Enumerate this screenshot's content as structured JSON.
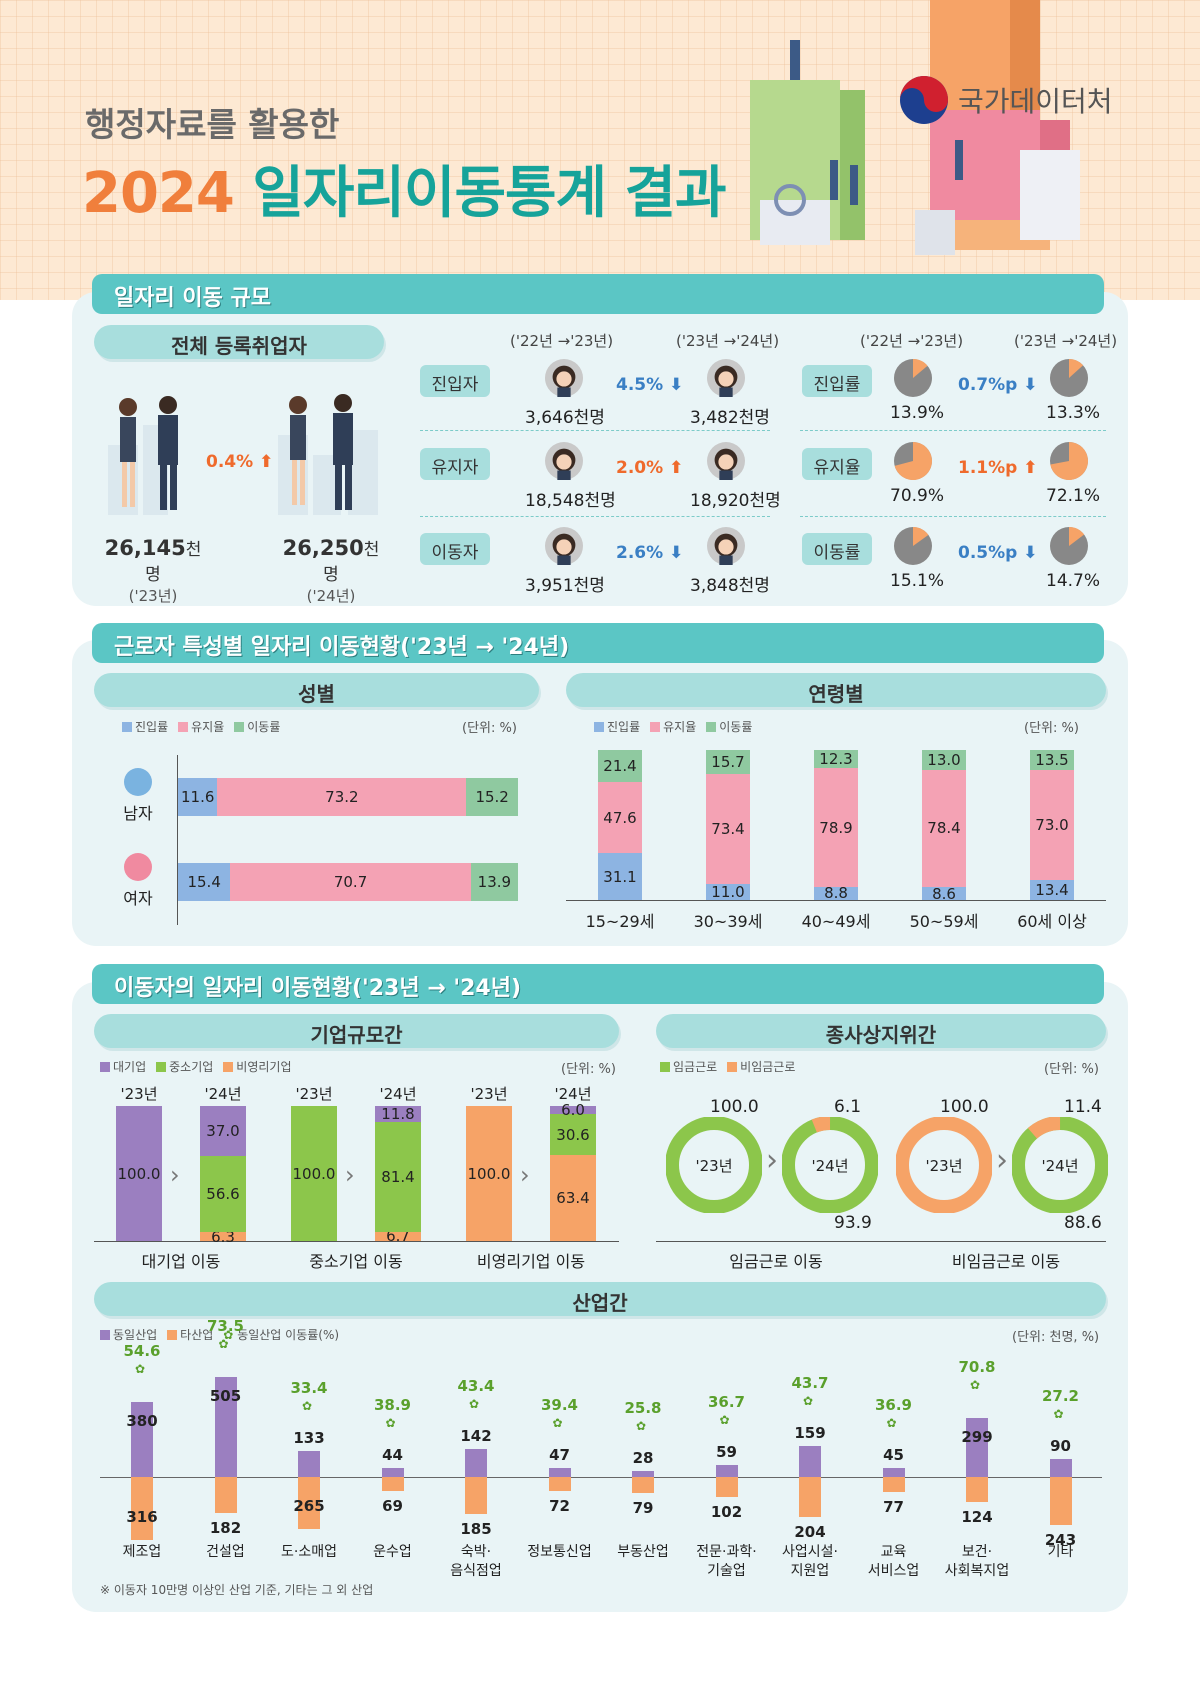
{
  "header": {
    "subtitle": "행정자료를 활용한",
    "title_year": "2024",
    "title_rest": "일자리이동통계 결과",
    "logo_text": "국가데이터처"
  },
  "scale": {
    "title": "일자리 이동 규모",
    "total": {
      "label": "전체 등록취업자",
      "change": "0.4%",
      "v23": "26,145",
      "v24": "26,250",
      "unit": "천명",
      "y23": "('23년)",
      "y24": "('24년)"
    },
    "period_a": "('22년 →'23년)",
    "period_b": "('23년 →'24년)",
    "unit": "천명",
    "counts": [
      {
        "label": "진입자",
        "a": "3,646",
        "b": "3,482",
        "change": "4.5%",
        "dir": "down"
      },
      {
        "label": "유지자",
        "a": "18,548",
        "b": "18,920",
        "change": "2.0%",
        "dir": "up"
      },
      {
        "label": "이동자",
        "a": "3,951",
        "b": "3,848",
        "change": "2.6%",
        "dir": "down"
      }
    ],
    "rates": [
      {
        "label": "진입률",
        "a": "13.9",
        "b": "13.3",
        "change": "0.7%p",
        "dir": "down"
      },
      {
        "label": "유지율",
        "a": "70.9",
        "b": "72.1",
        "change": "1.1%p",
        "dir": "up"
      },
      {
        "label": "이동률",
        "a": "15.1",
        "b": "14.7",
        "change": "0.5%p",
        "dir": "down"
      }
    ],
    "pct_sign": "%"
  },
  "worker": {
    "title": "근로자 특성별 일자리 이동현황('23년 → '24년)",
    "legend": [
      "진입률",
      "유지율",
      "이동률"
    ],
    "unit": "(단위: %)",
    "gender": {
      "title": "성별",
      "rows": [
        {
          "label": "남자",
          "values": [
            "11.6",
            "73.2",
            "15.2"
          ]
        },
        {
          "label": "여자",
          "values": [
            "15.4",
            "70.7",
            "13.9"
          ]
        }
      ]
    },
    "age": {
      "title": "연령별",
      "groups": [
        {
          "label": "15~29세",
          "values": [
            "31.1",
            "47.6",
            "21.4"
          ]
        },
        {
          "label": "30~39세",
          "values": [
            "11.0",
            "73.4",
            "15.7"
          ]
        },
        {
          "label": "40~49세",
          "values": [
            "8.8",
            "78.9",
            "12.3"
          ]
        },
        {
          "label": "50~59세",
          "values": [
            "8.6",
            "78.4",
            "13.0"
          ]
        },
        {
          "label": "60세 이상",
          "values": [
            "13.4",
            "73.0",
            "13.5"
          ]
        }
      ]
    }
  },
  "mover": {
    "title": "이동자의 일자리 이동현황('23년 → '24년)",
    "unit": "(단위: %)",
    "firm": {
      "title": "기업규모간",
      "legend": [
        "대기업",
        "중소기업",
        "비영리기업"
      ],
      "y23": "'23년",
      "y24": "'24년",
      "groups": [
        {
          "label": "대기업 이동",
          "from": "100.0",
          "to": [
            "37.0",
            "56.6",
            "6.3"
          ]
        },
        {
          "label": "중소기업 이동",
          "from": "100.0",
          "to": [
            "11.8",
            "81.4",
            "6.7"
          ]
        },
        {
          "label": "비영리기업 이동",
          "from": "100.0",
          "to": [
            "6.0",
            "30.6",
            "63.4"
          ]
        }
      ]
    },
    "status": {
      "title": "종사상지위간",
      "legend": [
        "임금근로",
        "비임금근로"
      ],
      "groups": [
        {
          "label": "임금근로 이동",
          "y23": "'23년",
          "y24": "'24년",
          "from": "100.0",
          "small": "6.1",
          "big": "93.9"
        },
        {
          "label": "비임금근로 이동",
          "y23": "'23년",
          "y24": "'24년",
          "from": "100.0",
          "small": "11.4",
          "big": "88.6"
        }
      ]
    },
    "industry": {
      "title": "산업간",
      "legend": [
        "동일산업",
        "타산업",
        "동일산업 이동률(%)"
      ],
      "unit": "(단위: 천명, %)",
      "items": [
        {
          "name": "제조업",
          "same": "380",
          "other": "316",
          "rate": "54.6"
        },
        {
          "name": "건설업",
          "same": "505",
          "other": "182",
          "rate": "73.5"
        },
        {
          "name": "도·소매업",
          "same": "133",
          "other": "265",
          "rate": "33.4"
        },
        {
          "name": "운수업",
          "same": "44",
          "other": "69",
          "rate": "38.9"
        },
        {
          "name": "숙박·\n음식점업",
          "same": "142",
          "other": "185",
          "rate": "43.4"
        },
        {
          "name": "정보통신업",
          "same": "47",
          "other": "72",
          "rate": "39.4"
        },
        {
          "name": "부동산업",
          "same": "28",
          "other": "79",
          "rate": "25.8"
        },
        {
          "name": "전문·과학·\n기술업",
          "same": "59",
          "other": "102",
          "rate": "36.7"
        },
        {
          "name": "사업시설·\n지원업",
          "same": "159",
          "other": "204",
          "rate": "43.7"
        },
        {
          "name": "교육\n서비스업",
          "same": "45",
          "other": "77",
          "rate": "36.9"
        },
        {
          "name": "보건·\n사회복지업",
          "same": "299",
          "other": "124",
          "rate": "70.8"
        },
        {
          "name": "기타",
          "same": "90",
          "other": "243",
          "rate": "27.2"
        }
      ],
      "note": "※ 이동자 10만명 이상인 산업 기준, 기타는 그 외 산업"
    }
  },
  "colors": {
    "teal": "#5bc6c5",
    "blue": "#8db4e2",
    "pink": "#f4a2b4",
    "green": "#8fc9a0",
    "purple": "#9b7fc0",
    "lime": "#8cc64b",
    "orange": "#f6a367",
    "gray": "#888888",
    "arrow_up": "#ef6a2c",
    "arrow_down": "#3a7fc4"
  }
}
